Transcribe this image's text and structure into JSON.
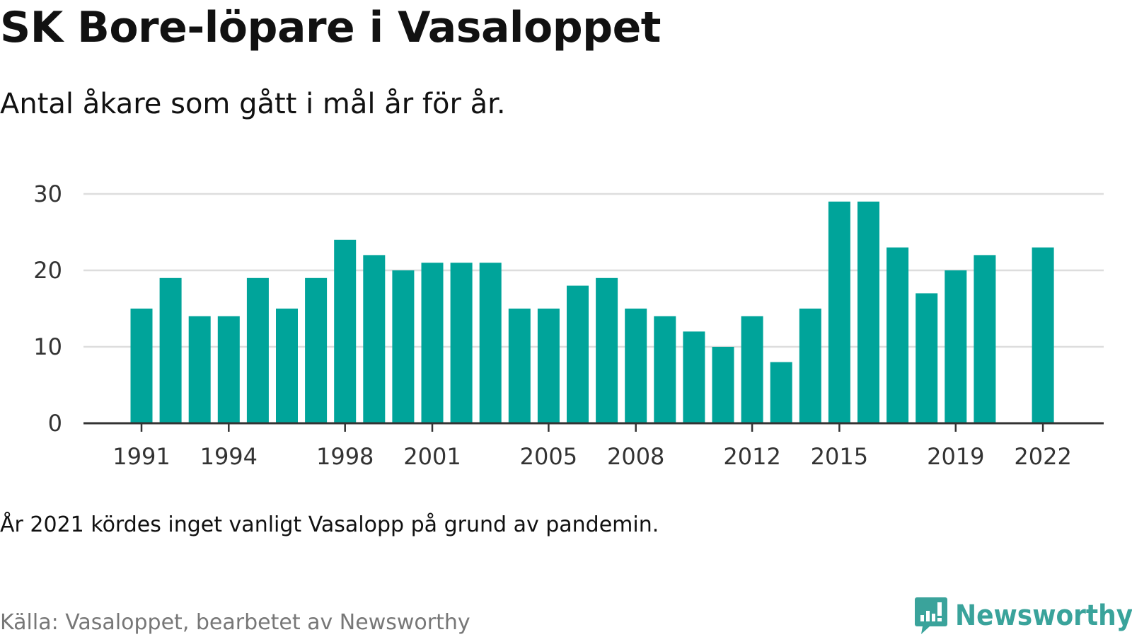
{
  "title": "SK Bore-löpare i Vasaloppet",
  "subtitle": "Antal åkare som gått i mål år för år.",
  "note": "År 2021 kördes inget vanligt Vasalopp på grund av pandemin.",
  "source": "Källa: Vasaloppet, bearbetet av Newsworthy",
  "brand": {
    "name": "Newsworthy",
    "icon": "newsworthy-logo-icon",
    "color": "#3aa39b"
  },
  "colors": {
    "bar": "#00a49a",
    "grid": "#dddddd",
    "axis": "#333333"
  },
  "chart_data": {
    "type": "bar",
    "x": [
      1991,
      1992,
      1993,
      1994,
      1995,
      1996,
      1997,
      1998,
      1999,
      2000,
      2001,
      2002,
      2003,
      2004,
      2005,
      2006,
      2007,
      2008,
      2009,
      2010,
      2011,
      2012,
      2013,
      2014,
      2015,
      2016,
      2017,
      2018,
      2019,
      2020,
      2021,
      2022
    ],
    "values": [
      15,
      19,
      14,
      14,
      19,
      15,
      19,
      24,
      22,
      20,
      21,
      21,
      21,
      15,
      15,
      18,
      19,
      15,
      14,
      12,
      10,
      14,
      8,
      15,
      29,
      29,
      23,
      17,
      20,
      22,
      null,
      23
    ],
    "x_ticks": [
      1991,
      1994,
      1998,
      2001,
      2005,
      2008,
      2012,
      2015,
      2019,
      2022
    ],
    "y_ticks": [
      0,
      10,
      20,
      30
    ],
    "ylim": [
      0,
      30
    ],
    "grid": true,
    "legend": false,
    "xlabel": "",
    "ylabel": ""
  }
}
